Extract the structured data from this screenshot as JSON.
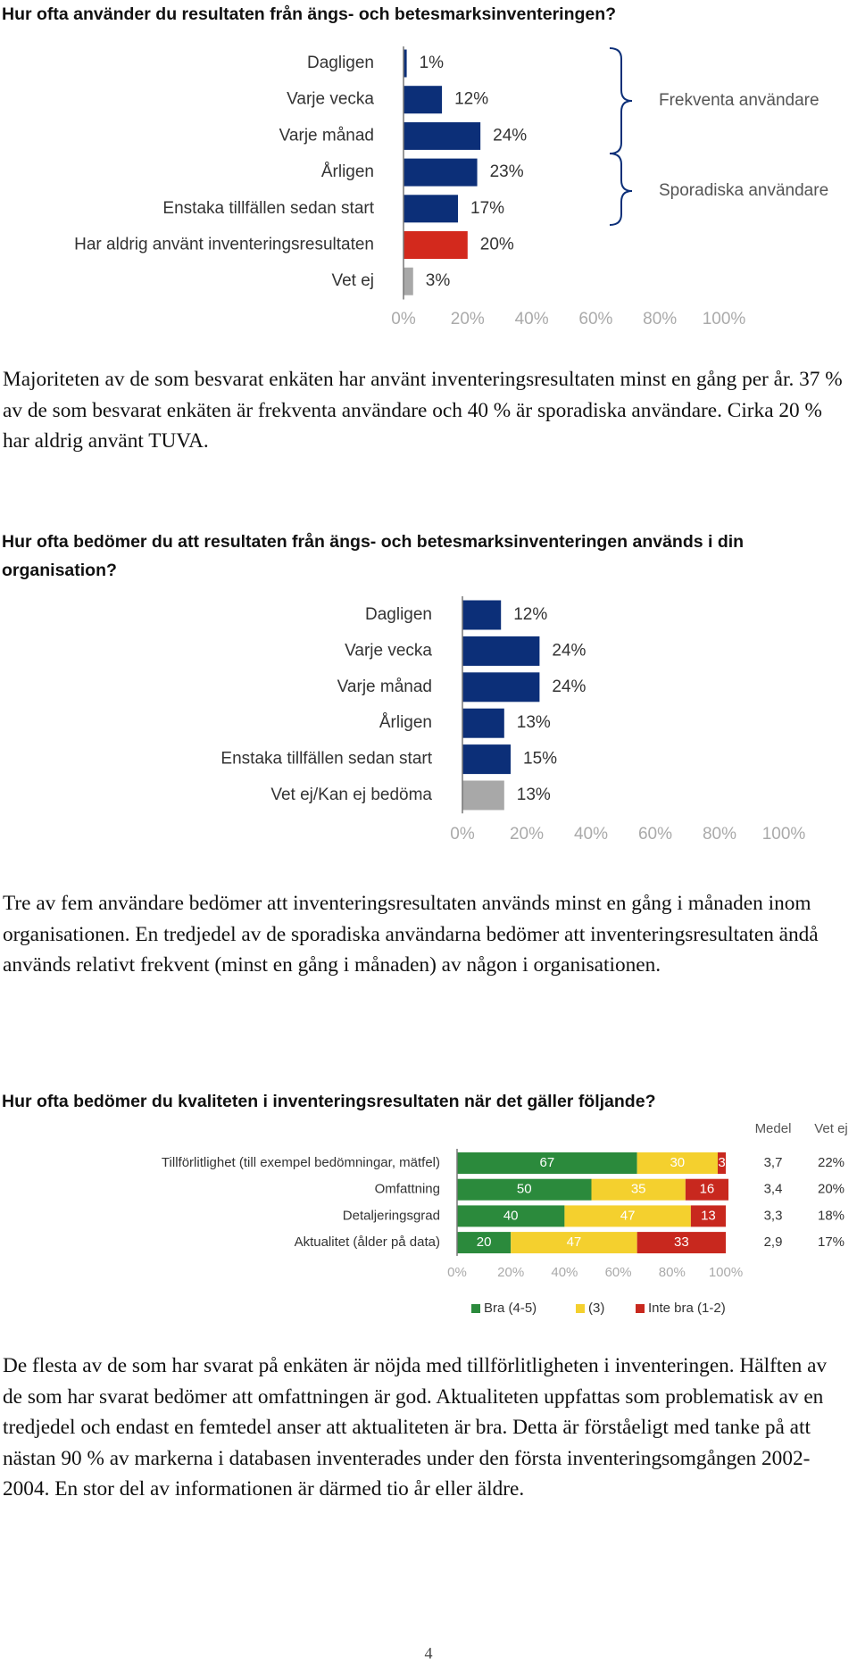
{
  "chart_data": [
    {
      "type": "bar",
      "title": "Hur ofta använder du resultaten från ängs- och betesmarksinventeringen?",
      "categories": [
        "Dagligen",
        "Varje vecka",
        "Varje månad",
        "Årligen",
        "Enstaka tillfällen sedan start",
        "Har aldrig använt inventeringsresultaten",
        "Vet ej"
      ],
      "values": [
        1,
        12,
        24,
        23,
        17,
        20,
        3
      ],
      "value_labels": [
        "1%",
        "12%",
        "24%",
        "23%",
        "17%",
        "20%",
        "3%"
      ],
      "colors": [
        "#0c2f78",
        "#0c2f78",
        "#0c2f78",
        "#0c2f78",
        "#0c2f78",
        "#d3291d",
        "#a8a8a8"
      ],
      "xlim": [
        0,
        100
      ],
      "xticks": [
        {
          "value": 0,
          "label": "0%"
        },
        {
          "value": 20,
          "label": "20%"
        },
        {
          "value": 40,
          "label": "40%"
        },
        {
          "value": 60,
          "label": "60%"
        },
        {
          "value": 80,
          "label": "80%"
        },
        {
          "value": 100,
          "label": "100%"
        }
      ],
      "annotations": [
        "Frekventa användare",
        "Sporadiska användare"
      ]
    },
    {
      "type": "bar",
      "title": "Hur ofta bedömer du att resultaten från ängs- och betesmarksinventeringen används i din organisation?",
      "categories": [
        "Dagligen",
        "Varje vecka",
        "Varje månad",
        "Årligen",
        "Enstaka tillfällen sedan start",
        "Vet ej/Kan ej bedöma"
      ],
      "values": [
        12,
        24,
        24,
        13,
        15,
        13
      ],
      "value_labels": [
        "12%",
        "24%",
        "24%",
        "13%",
        "15%",
        "13%"
      ],
      "colors": [
        "#0c2f78",
        "#0c2f78",
        "#0c2f78",
        "#0c2f78",
        "#0c2f78",
        "#a8a8a8"
      ],
      "xlim": [
        0,
        100
      ],
      "xticks": [
        {
          "value": 0,
          "label": "0%"
        },
        {
          "value": 20,
          "label": "20%"
        },
        {
          "value": 40,
          "label": "40%"
        },
        {
          "value": 60,
          "label": "60%"
        },
        {
          "value": 80,
          "label": "80%"
        },
        {
          "value": 100,
          "label": "100%"
        }
      ]
    },
    {
      "type": "stacked_bar",
      "title": "Hur ofta bedömer du kvaliteten i inventeringsresultaten när det gäller följande?",
      "categories": [
        "Tillförlitlighet (till exempel bedömningar, mätfel)",
        "Omfattning",
        "Detaljeringsgrad",
        "Aktualitet (ålder på data)"
      ],
      "series": [
        {
          "name": "Bra (4-5)",
          "color": "#2b8a3c",
          "values": [
            67,
            50,
            40,
            20
          ]
        },
        {
          "name": "(3)",
          "color": "#f4d02e",
          "values": [
            30,
            35,
            47,
            47
          ]
        },
        {
          "name": "Inte bra (1-2)",
          "color": "#c8281e",
          "values": [
            3,
            16,
            13,
            33
          ]
        }
      ],
      "columns": [
        {
          "header": "Medel",
          "values": [
            3.7,
            3.4,
            3.3,
            2.9
          ],
          "value_labels": [
            "3,7",
            "3,4",
            "3,3",
            "2,9"
          ]
        },
        {
          "header": "Vet ej",
          "values": [
            22,
            20,
            18,
            17
          ],
          "value_labels": [
            "22%",
            "20%",
            "18%",
            "17%"
          ]
        }
      ],
      "xlim": [
        0,
        100
      ],
      "xticks": [
        {
          "value": 0,
          "label": "0%"
        },
        {
          "value": 20,
          "label": "20%"
        },
        {
          "value": 40,
          "label": "40%"
        },
        {
          "value": 60,
          "label": "60%"
        },
        {
          "value": 80,
          "label": "80%"
        },
        {
          "value": 100,
          "label": "100%"
        }
      ]
    }
  ],
  "paragraphs": [
    "Majoriteten av de som besvarat enkäten har använt inventeringsresultaten minst en gång per år. 37 % av de som besvarat enkäten är frekventa användare och 40 % är sporadiska användare. Cirka 20 % har aldrig använt TUVA.",
    "Tre av fem användare bedömer att inventeringsresultaten används minst en gång i månaden inom organisationen. En tredjedel av de sporadiska användarna bedömer att inventeringsresultaten ändå används relativt frekvent (minst en gång i månaden) av någon i organisationen.",
    "De flesta av de som har svarat på enkäten är nöjda med tillförlitligheten i inventeringen. Hälften av de som har svarat bedömer att omfattningen är god. Aktualiteten uppfattas som problematisk av en tredjedel och endast en femtedel anser att aktualiteten är bra. Detta är förståeligt med tanke på att nästan 90 % av markerna i databasen inventerades under den första inventeringsomgången 2002-2004. En stor del av informationen är därmed tio år eller äldre."
  ],
  "page_number": "4"
}
